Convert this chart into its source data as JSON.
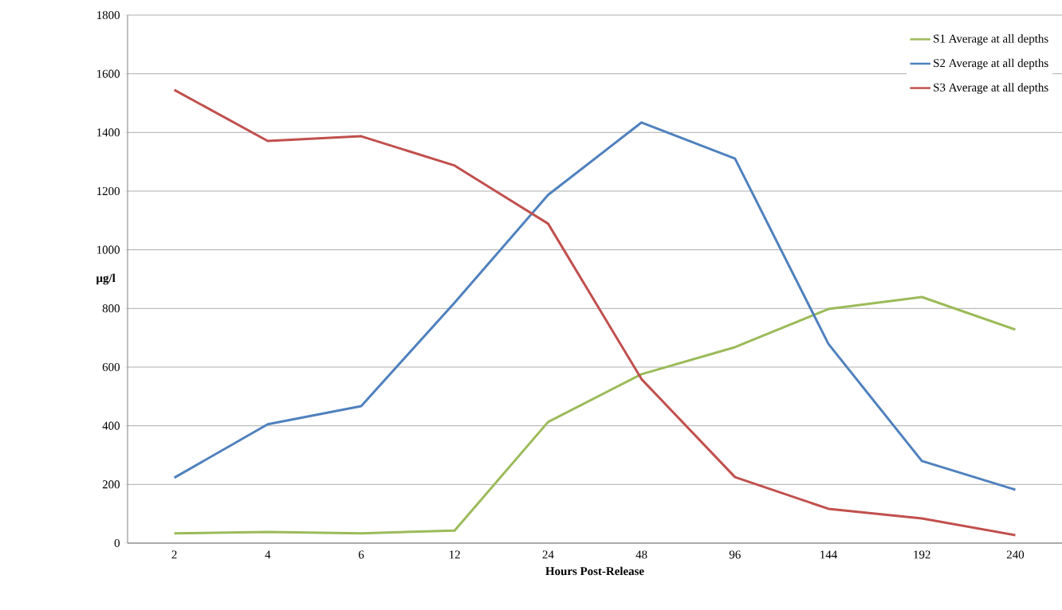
{
  "chart_data": {
    "type": "line",
    "xlabel": "Hours Post-Release",
    "ylabel": "µg/l",
    "categories": [
      "2",
      "4",
      "6",
      "12",
      "24",
      "48",
      "96",
      "144",
      "192",
      "240"
    ],
    "series": [
      {
        "name": "S1 Average at all depths",
        "color": "#9bbb59",
        "values": [
          33,
          38,
          33,
          43,
          413,
          576,
          668,
          798,
          839,
          728
        ]
      },
      {
        "name": "S2 Average at all depths",
        "color": "#4f81bd",
        "values": [
          223,
          405,
          467,
          820,
          1187,
          1434,
          1311,
          679,
          280,
          182
        ]
      },
      {
        "name": "S3 Average at all depths",
        "color": "#c0504d",
        "values": [
          1545,
          1371,
          1387,
          1287,
          1089,
          559,
          225,
          117,
          84,
          27
        ]
      }
    ],
    "ylim": [
      0,
      1800
    ],
    "yticks": [
      0,
      200,
      400,
      600,
      800,
      1000,
      1200,
      1400,
      1600,
      1800
    ],
    "grid": "y",
    "legend": "top right",
    "marker": "none",
    "line_style": "solid"
  }
}
